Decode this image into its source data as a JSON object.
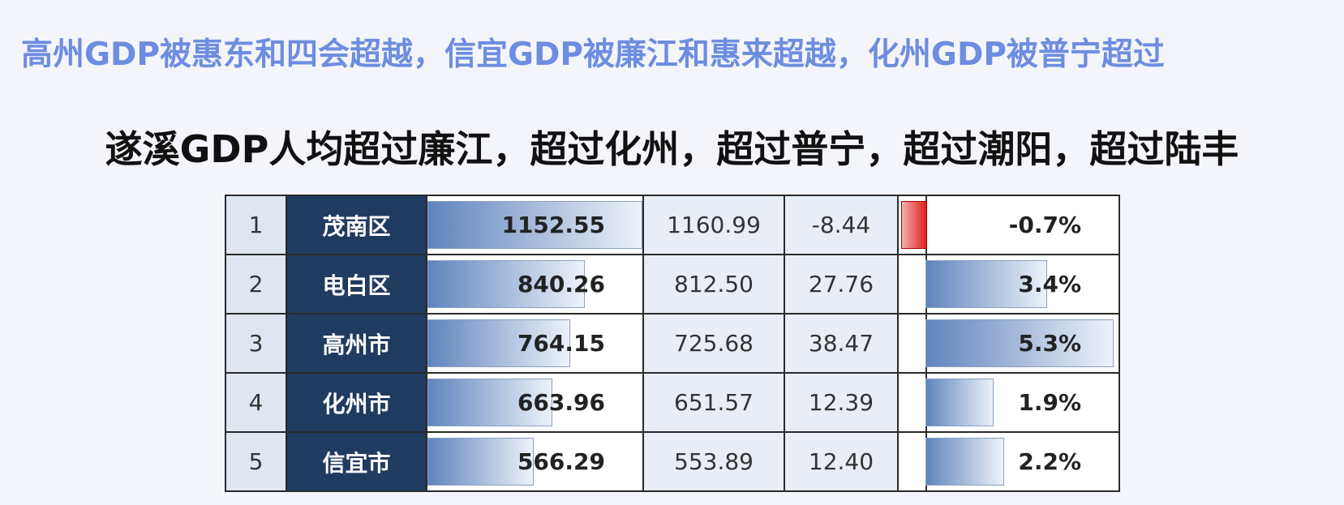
{
  "header": {
    "title": "高州GDP被惠东和四会超越，信宜GDP被廉江和惠来超越，化州GDP被普宁超过",
    "subtitle": "遂溪GDP人均超过廉江，超过化州，超过普宁，超过潮阳，超过陆丰"
  },
  "table": {
    "rows": [
      [
        "1",
        "茂南区",
        "1152.55",
        "1160.99",
        "-8.44",
        "-0.7%"
      ],
      [
        "2",
        "电白区",
        "840.26",
        "812.50",
        "27.76",
        "3.4%"
      ],
      [
        "3",
        "高州市",
        "764.15",
        "725.68",
        "38.47",
        "5.3%"
      ],
      [
        "4",
        "化州市",
        "663.96",
        "651.57",
        "12.39",
        "1.9%"
      ],
      [
        "5",
        "信宜市",
        "566.29",
        "553.89",
        "12.40",
        "2.2%"
      ]
    ]
  }
}
